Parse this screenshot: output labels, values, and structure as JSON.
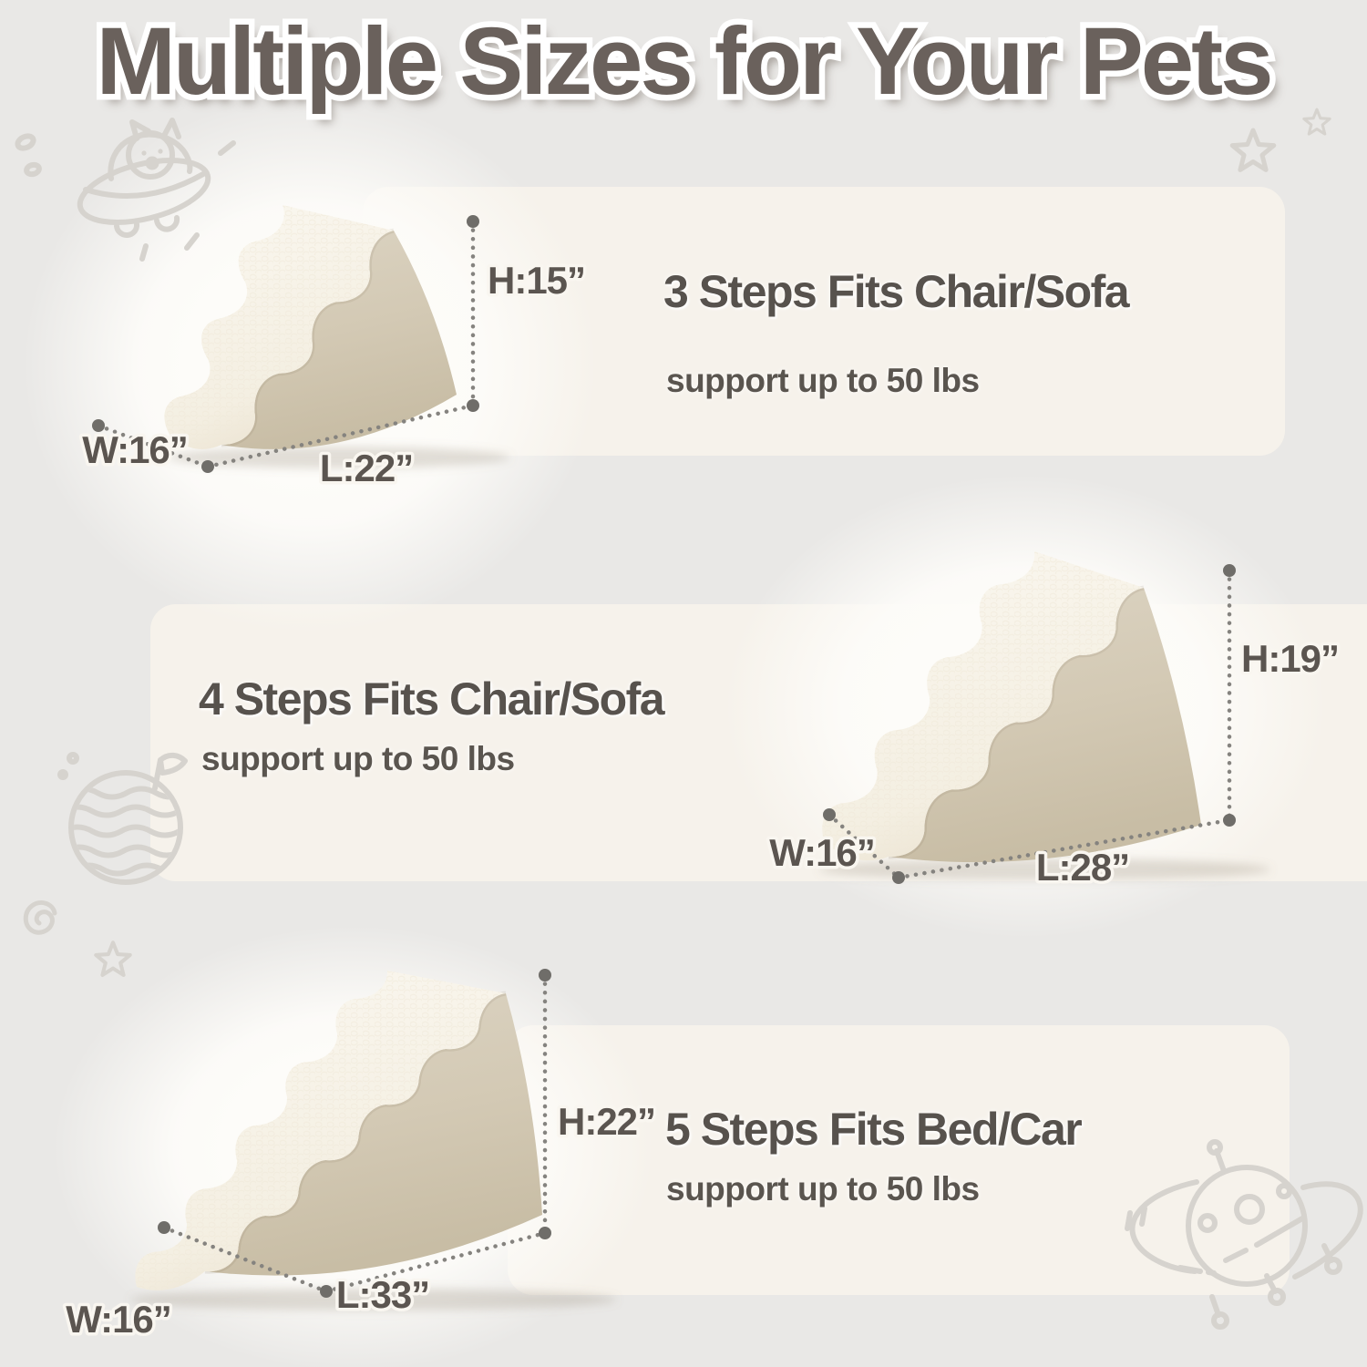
{
  "title": "Multiple Sizes for Your Pets",
  "sections": [
    {
      "id": "three-step",
      "heading": "3 Steps Fits Chair/Sofa",
      "subtitle": "support up to 50 lbs",
      "steps": 3,
      "dims": {
        "height": "H:15”",
        "width": "W:16”",
        "length": "L:22”"
      }
    },
    {
      "id": "four-step",
      "heading": "4 Steps Fits Chair/Sofa",
      "subtitle": "support up to 50 lbs",
      "steps": 4,
      "dims": {
        "height": "H:19”",
        "width": "W:16”",
        "length": "L:28”"
      }
    },
    {
      "id": "five-step",
      "heading": "5 Steps Fits Bed/Car",
      "subtitle": "support up to 50 lbs",
      "steps": 5,
      "dims": {
        "height": "H:22”",
        "width": "W:16”",
        "length": "L:33”"
      }
    }
  ],
  "doodles": {
    "top_left": "cat-in-ufo-doodle",
    "top_right": "stars-doodle",
    "middle_left": "striped-planet-with-flag-doodle",
    "left_spiral": "spiral-doodle",
    "left_star": "star-doodle",
    "bottom_right": "alien-ufo-doodle"
  },
  "colors": {
    "background": "#e9e8e6",
    "band": "#f6f2eb",
    "glow": "#fdfcf9",
    "title": "#6a615c",
    "heading": "#57524d",
    "dim_label": "#5b5550",
    "dotted_line": "#85837f",
    "dot_end": "#6f6d69",
    "fleece": "#fbf8f1",
    "fleece_shade": "#ece4d3",
    "suede_light": "#dcd4c3",
    "suede_dark": "#c8bda5",
    "doodle": "#d6d3ce"
  }
}
